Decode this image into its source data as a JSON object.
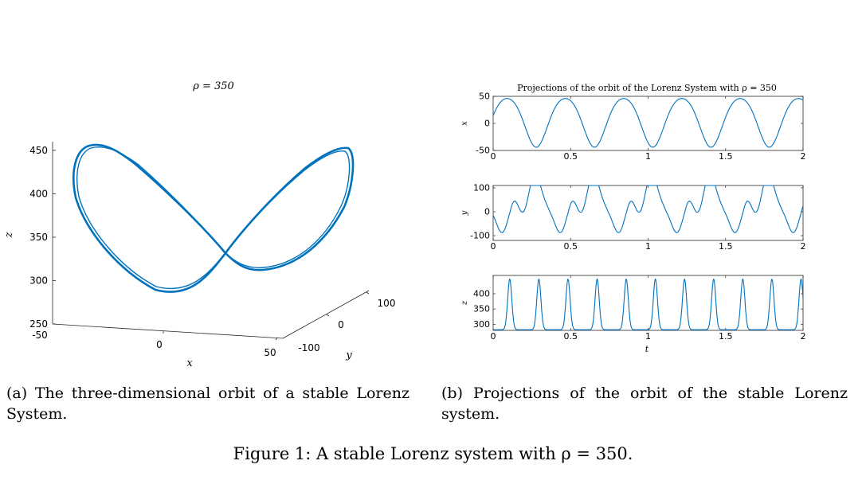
{
  "chart_data": [
    {
      "type": "line",
      "subtype": "3d-orbit",
      "title": "ρ = 350",
      "xlabel": "x",
      "ylabel": "y",
      "zlabel": "z",
      "x_ticks": [
        "-50",
        "0",
        "50"
      ],
      "y_ticks": [
        "-100",
        "0",
        "100"
      ],
      "z_ticks": [
        "250",
        "300",
        "350",
        "400",
        "450"
      ],
      "zlim": [
        250,
        460
      ],
      "line_color": "#0072BD",
      "shape": "figure-eight limit cycle",
      "lobe_peaks_z": [
        449,
        440
      ],
      "crossing_z": 335,
      "lobe_minima_z": [
        285,
        290
      ]
    },
    {
      "type": "line",
      "title": "Projections of the orbit of the Lorenz System with ρ = 350",
      "xlabel": "t",
      "x_ticks": [
        "0",
        "0.5",
        "1",
        "1.5",
        "2"
      ],
      "xlim": [
        0,
        2
      ],
      "line_color": "#0072BD",
      "period": 0.376,
      "panels": [
        {
          "ylabel": "x",
          "ylim": [
            -50,
            50
          ],
          "yticks": [
            "50",
            "0",
            "-50"
          ],
          "peak_times": [
            0.167,
            0.543,
            0.919,
            1.295,
            1.671
          ],
          "trough_times": [
            0.085,
            0.461,
            0.837,
            1.213,
            1.589,
            1.965
          ],
          "peak_value": 46,
          "trough_value": -44
        },
        {
          "ylabel": "y",
          "ylim": [
            -120,
            110
          ],
          "yticks": [
            "100",
            "0",
            "-100"
          ],
          "peak_times": [
            0.155,
            0.531,
            0.907,
            1.283,
            1.659
          ],
          "trough_times": [
            0.065,
            0.441,
            0.817,
            1.193,
            1.569,
            1.945
          ],
          "peak_value": 105,
          "trough_value": -118
        },
        {
          "ylabel": "z",
          "ylim": [
            280,
            460
          ],
          "yticks": [
            "400",
            "350",
            "300"
          ],
          "peak_times": [
            0.107,
            0.295,
            0.483,
            0.671,
            0.859,
            1.047,
            1.235,
            1.423,
            1.611,
            1.799,
            1.987
          ],
          "peak_value": 448,
          "trough_value": 290
        }
      ]
    }
  ],
  "captions": {
    "a": "(a) The three-dimensional orbit of a stable Lorenz System.",
    "b": "(b) Projections of the orbit of the stable Lorenz system.",
    "figure": "Figure 1: A stable Lorenz system with ρ = 350."
  }
}
